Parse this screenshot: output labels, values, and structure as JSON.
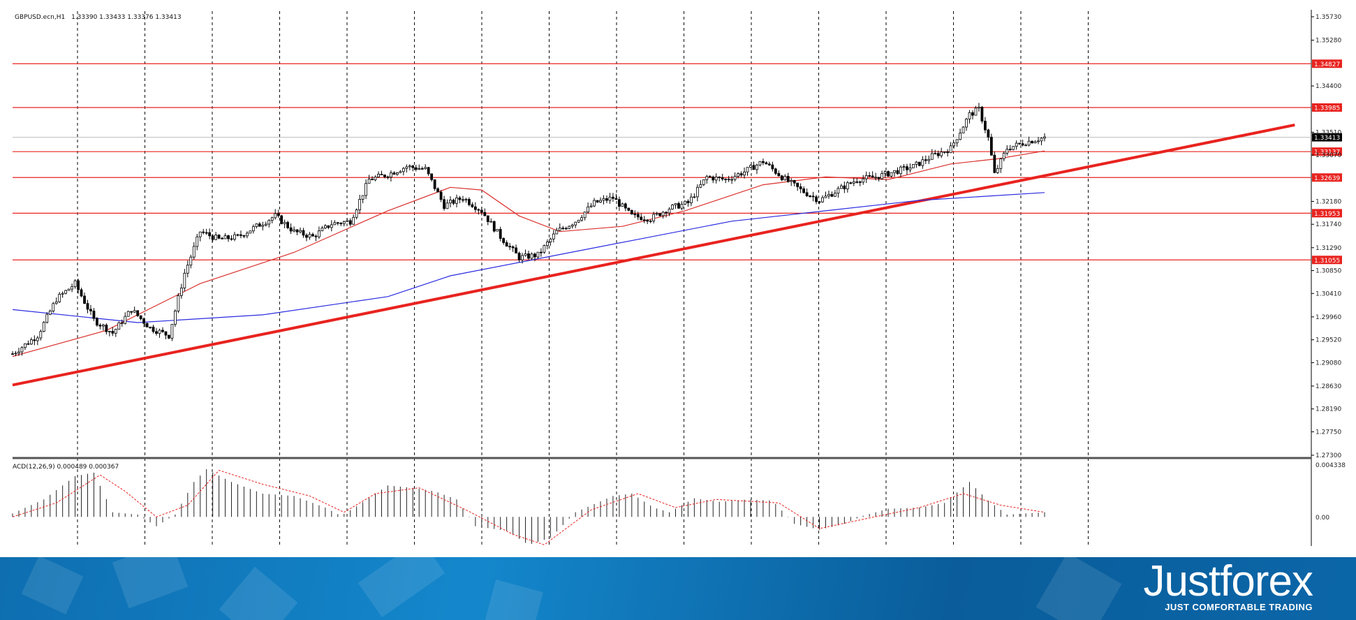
{
  "header": {
    "symbol": "GBPUSD.ecn,H1",
    "ohlc": "1.33390 1.33433 1.33376 1.33413"
  },
  "indicator": {
    "label": "ACD(12,26,9) 0.000489 0.000367",
    "top_label": "0.004338",
    "zero_label": "0.00"
  },
  "brand": {
    "name": "Justforex",
    "tagline": "JUST COMFORTABLE TRADING"
  },
  "colors": {
    "level_line": "#e8231f",
    "trendline": "#e8231f",
    "ma_fast": "#d9302c",
    "ma_slow": "#2a2ae0",
    "candles": "#000000",
    "current_price_box": "#000000"
  },
  "chart_data": {
    "type": "candlestick",
    "symbol": "GBPUSD.ecn",
    "timeframe": "H1",
    "y_axis_ticks": [
      "1.35730",
      "1.35280",
      "1.34400",
      "1.33510",
      "1.33070",
      "1.32180",
      "1.31740",
      "1.31290",
      "1.30850",
      "1.30410",
      "1.29960",
      "1.29520",
      "1.29080",
      "1.28630",
      "1.28190",
      "1.27750",
      "1.27300"
    ],
    "ylim": [
      1.273,
      1.3573
    ],
    "current_price": "1.33413",
    "horizontal_levels": [
      "1.34827",
      "1.33985",
      "1.33137",
      "1.32639",
      "1.31953",
      "1.31055"
    ],
    "close_path": [
      [
        0,
        1.2925
      ],
      [
        8,
        1.296
      ],
      [
        14,
        1.303
      ],
      [
        20,
        1.306
      ],
      [
        26,
        1.299
      ],
      [
        32,
        1.2965
      ],
      [
        38,
        1.301
      ],
      [
        44,
        1.2975
      ],
      [
        50,
        1.296
      ],
      [
        55,
        1.308
      ],
      [
        60,
        1.316
      ],
      [
        66,
        1.3145
      ],
      [
        72,
        1.315
      ],
      [
        78,
        1.317
      ],
      [
        84,
        1.319
      ],
      [
        90,
        1.316
      ],
      [
        96,
        1.315
      ],
      [
        102,
        1.3175
      ],
      [
        108,
        1.318
      ],
      [
        114,
        1.326
      ],
      [
        120,
        1.327
      ],
      [
        126,
        1.3285
      ],
      [
        132,
        1.328
      ],
      [
        138,
        1.321
      ],
      [
        144,
        1.3225
      ],
      [
        150,
        1.32
      ],
      [
        156,
        1.315
      ],
      [
        162,
        1.311
      ],
      [
        168,
        1.3115
      ],
      [
        174,
        1.316
      ],
      [
        180,
        1.318
      ],
      [
        186,
        1.3215
      ],
      [
        192,
        1.3225
      ],
      [
        198,
        1.319
      ],
      [
        204,
        1.3185
      ],
      [
        210,
        1.3205
      ],
      [
        216,
        1.3215
      ],
      [
        222,
        1.3265
      ],
      [
        228,
        1.326
      ],
      [
        234,
        1.3275
      ],
      [
        240,
        1.3295
      ],
      [
        246,
        1.3265
      ],
      [
        252,
        1.324
      ],
      [
        258,
        1.322
      ],
      [
        264,
        1.324
      ],
      [
        270,
        1.326
      ],
      [
        276,
        1.3265
      ],
      [
        282,
        1.3275
      ],
      [
        288,
        1.3285
      ],
      [
        294,
        1.3305
      ],
      [
        300,
        1.332
      ],
      [
        306,
        1.3385
      ],
      [
        309,
        1.3395
      ],
      [
        312,
        1.334
      ],
      [
        314,
        1.327
      ],
      [
        318,
        1.332
      ],
      [
        324,
        1.3332
      ],
      [
        330,
        1.3341
      ]
    ],
    "ma_fast_path": [
      [
        0,
        1.292
      ],
      [
        30,
        1.297
      ],
      [
        60,
        1.306
      ],
      [
        90,
        1.312
      ],
      [
        120,
        1.32
      ],
      [
        140,
        1.3245
      ],
      [
        150,
        1.324
      ],
      [
        162,
        1.319
      ],
      [
        175,
        1.316
      ],
      [
        195,
        1.317
      ],
      [
        215,
        1.32
      ],
      [
        240,
        1.325
      ],
      [
        260,
        1.3265
      ],
      [
        280,
        1.326
      ],
      [
        300,
        1.329
      ],
      [
        315,
        1.33
      ],
      [
        330,
        1.3315
      ]
    ],
    "ma_slow_path": [
      [
        0,
        1.301
      ],
      [
        40,
        1.2985
      ],
      [
        80,
        1.3
      ],
      [
        120,
        1.3035
      ],
      [
        140,
        1.3075
      ],
      [
        170,
        1.311
      ],
      [
        200,
        1.3145
      ],
      [
        230,
        1.318
      ],
      [
        260,
        1.32
      ],
      [
        290,
        1.322
      ],
      [
        330,
        1.3235
      ]
    ],
    "trendline": [
      [
        0,
        1.2865
      ],
      [
        410,
        1.3365
      ]
    ],
    "macd": {
      "ylim": [
        -0.0025,
        0.004338
      ],
      "histogram_path": [
        [
          0,
          0.0003
        ],
        [
          10,
          0.0015
        ],
        [
          20,
          0.0035
        ],
        [
          26,
          0.0038
        ],
        [
          32,
          0.0004
        ],
        [
          40,
          0.0002
        ],
        [
          46,
          -0.0008
        ],
        [
          52,
          0.0002
        ],
        [
          58,
          0.003
        ],
        [
          62,
          0.0041
        ],
        [
          70,
          0.003
        ],
        [
          80,
          0.002
        ],
        [
          90,
          0.0018
        ],
        [
          100,
          0.0008
        ],
        [
          105,
          0.0001
        ],
        [
          110,
          0.0009
        ],
        [
          120,
          0.0027
        ],
        [
          128,
          0.0025
        ],
        [
          135,
          0.0022
        ],
        [
          142,
          0.0015
        ],
        [
          148,
          -0.0008
        ],
        [
          158,
          -0.0012
        ],
        [
          165,
          -0.0024
        ],
        [
          172,
          -0.0018
        ],
        [
          180,
          0.0004
        ],
        [
          192,
          0.0018
        ],
        [
          198,
          0.002
        ],
        [
          205,
          0.0008
        ],
        [
          210,
          0.0004
        ],
        [
          218,
          0.0016
        ],
        [
          226,
          0.0013
        ],
        [
          235,
          0.0015
        ],
        [
          243,
          0.0014
        ],
        [
          250,
          -0.0006
        ],
        [
          258,
          -0.0011
        ],
        [
          266,
          -0.0006
        ],
        [
          272,
          0.0001
        ],
        [
          280,
          0.0007
        ],
        [
          290,
          0.0008
        ],
        [
          298,
          0.0012
        ],
        [
          306,
          0.003
        ],
        [
          312,
          0.0014
        ],
        [
          318,
          0.0002
        ],
        [
          330,
          0.0004
        ]
      ],
      "signal_path": [
        [
          0,
          0.0
        ],
        [
          14,
          0.0012
        ],
        [
          28,
          0.0036
        ],
        [
          36,
          0.0022
        ],
        [
          46,
          0.0
        ],
        [
          56,
          0.001
        ],
        [
          66,
          0.004
        ],
        [
          80,
          0.0028
        ],
        [
          95,
          0.0018
        ],
        [
          106,
          0.0004
        ],
        [
          116,
          0.002
        ],
        [
          130,
          0.0025
        ],
        [
          145,
          0.0006
        ],
        [
          160,
          -0.0015
        ],
        [
          170,
          -0.0024
        ],
        [
          185,
          0.0006
        ],
        [
          200,
          0.002
        ],
        [
          212,
          0.0008
        ],
        [
          225,
          0.0015
        ],
        [
          245,
          0.0012
        ],
        [
          258,
          -0.001
        ],
        [
          272,
          -0.0002
        ],
        [
          290,
          0.0008
        ],
        [
          304,
          0.002
        ],
        [
          316,
          0.001
        ],
        [
          330,
          0.0004
        ]
      ]
    }
  }
}
